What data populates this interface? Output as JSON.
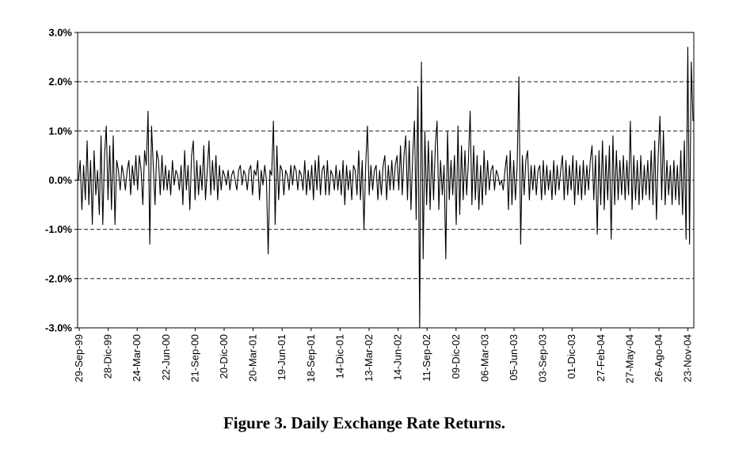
{
  "caption": "Figure 3. Daily Exchange Rate Returns.",
  "chart_data": {
    "type": "line",
    "title": "",
    "xlabel": "",
    "ylabel": "",
    "ylim": [
      -0.03,
      0.03
    ],
    "y_tick_values": [
      0.03,
      0.02,
      0.01,
      0.0,
      -0.01,
      -0.02,
      -0.03
    ],
    "y_tick_labels": [
      "3.0%",
      "2.0%",
      "1.0%",
      "0.0%",
      "-1.0%",
      "-2.0%",
      "-3.0%"
    ],
    "x_tick_labels": [
      "29-Sep-99",
      "28-Dic-99",
      "24-Mar-00",
      "22-Jun-00",
      "21-Sep-00",
      "20-Dic-00",
      "20-Mar-01",
      "19-Jun-01",
      "18-Sep-01",
      "14-Dic-01",
      "13-Mar-02",
      "14-Jun-02",
      "11-Sep-02",
      "09-Dic-02",
      "06-Mar-03",
      "05-Jun-03",
      "03-Sep-03",
      "01-Dic-03",
      "27-Feb-04",
      "27-May-04",
      "26-Ago-04",
      "23-Nov-04"
    ],
    "grid": {
      "horizontal": true,
      "style": "dashed"
    },
    "legend": "none",
    "series_color": "#000000",
    "series": [
      {
        "values": [
          0.0,
          0.004,
          -0.006,
          0.003,
          -0.004,
          0.008,
          -0.005,
          0.004,
          -0.009,
          0.006,
          -0.003,
          0.002,
          -0.007,
          0.009,
          -0.009,
          0.005,
          0.011,
          -0.004,
          0.007,
          -0.006,
          0.009,
          -0.009,
          0.004,
          0.002,
          -0.002,
          0.003,
          0.001,
          -0.002,
          0.002,
          0.004,
          -0.003,
          0.003,
          -0.001,
          0.005,
          -0.002,
          0.005,
          0.002,
          -0.005,
          0.006,
          0.003,
          0.014,
          -0.013,
          0.011,
          0.003,
          -0.005,
          0.006,
          0.004,
          -0.003,
          0.005,
          -0.002,
          0.003,
          -0.002,
          0.002,
          -0.003,
          0.004,
          -0.001,
          0.002,
          0.001,
          -0.002,
          0.003,
          -0.005,
          0.006,
          -0.002,
          0.003,
          -0.006,
          0.005,
          0.008,
          -0.004,
          0.004,
          -0.003,
          0.003,
          -0.002,
          0.007,
          -0.004,
          0.002,
          0.008,
          -0.003,
          0.004,
          -0.002,
          0.005,
          -0.004,
          0.003,
          -0.002,
          0.002,
          0.001,
          -0.001,
          0.002,
          -0.002,
          0.001,
          0.002,
          0.0,
          -0.002,
          0.002,
          0.003,
          -0.001,
          0.002,
          0.001,
          -0.002,
          0.002,
          0.003,
          -0.003,
          0.002,
          0.001,
          0.004,
          -0.004,
          0.002,
          -0.001,
          0.003,
          0.0,
          -0.015,
          0.002,
          0.001,
          0.012,
          -0.009,
          0.007,
          -0.004,
          0.003,
          0.002,
          -0.003,
          0.002,
          0.001,
          -0.002,
          0.003,
          -0.001,
          0.003,
          0.002,
          -0.002,
          0.002,
          0.001,
          -0.002,
          0.004,
          -0.003,
          0.002,
          -0.002,
          0.003,
          -0.004,
          0.004,
          -0.002,
          0.005,
          -0.003,
          0.002,
          0.003,
          -0.003,
          0.004,
          -0.003,
          0.002,
          0.001,
          -0.002,
          0.003,
          -0.002,
          0.002,
          -0.003,
          0.004,
          -0.005,
          0.003,
          -0.002,
          0.002,
          -0.004,
          0.003,
          0.002,
          -0.003,
          0.006,
          -0.004,
          0.004,
          -0.01,
          0.003,
          0.011,
          -0.003,
          0.003,
          -0.002,
          0.002,
          0.003,
          -0.004,
          0.002,
          -0.003,
          0.003,
          0.005,
          -0.004,
          0.003,
          -0.002,
          0.004,
          -0.002,
          0.003,
          0.005,
          -0.002,
          0.007,
          -0.003,
          0.005,
          0.009,
          -0.004,
          0.008,
          -0.006,
          0.005,
          0.012,
          -0.008,
          0.019,
          -0.03,
          0.024,
          -0.016,
          0.01,
          -0.005,
          0.008,
          -0.006,
          0.006,
          -0.004,
          0.007,
          0.012,
          -0.006,
          0.004,
          -0.003,
          0.003,
          -0.016,
          0.01,
          -0.004,
          0.004,
          -0.003,
          0.005,
          -0.009,
          0.011,
          -0.007,
          0.007,
          -0.004,
          0.006,
          -0.003,
          0.004,
          0.014,
          -0.005,
          0.007,
          -0.004,
          0.005,
          -0.006,
          0.003,
          -0.005,
          0.006,
          -0.003,
          0.004,
          -0.002,
          0.002,
          0.003,
          -0.002,
          0.002,
          0.001,
          -0.001,
          0.0,
          -0.002,
          0.002,
          0.005,
          -0.006,
          0.006,
          -0.005,
          0.004,
          -0.004,
          0.003,
          0.021,
          -0.013,
          0.005,
          -0.003,
          0.004,
          0.006,
          -0.004,
          0.003,
          -0.002,
          0.003,
          -0.003,
          0.002,
          0.003,
          -0.004,
          0.004,
          -0.003,
          0.003,
          -0.002,
          0.002,
          -0.004,
          0.004,
          -0.003,
          0.003,
          -0.002,
          0.002,
          0.005,
          -0.004,
          0.004,
          -0.003,
          0.003,
          -0.002,
          0.005,
          -0.005,
          0.004,
          -0.003,
          0.003,
          -0.004,
          0.004,
          -0.003,
          0.003,
          -0.002,
          0.004,
          0.007,
          -0.004,
          0.005,
          -0.011,
          0.006,
          -0.005,
          0.008,
          -0.006,
          0.005,
          -0.004,
          0.007,
          -0.012,
          0.009,
          -0.005,
          0.006,
          -0.004,
          0.004,
          -0.003,
          0.005,
          -0.004,
          0.004,
          -0.003,
          0.012,
          -0.006,
          0.005,
          -0.004,
          0.004,
          -0.005,
          0.005,
          -0.004,
          0.003,
          -0.003,
          0.004,
          -0.004,
          0.006,
          -0.005,
          0.008,
          -0.008,
          0.005,
          0.013,
          -0.004,
          0.01,
          -0.005,
          0.004,
          -0.003,
          0.003,
          -0.005,
          0.004,
          -0.004,
          0.003,
          -0.005,
          0.006,
          -0.007,
          0.008,
          -0.012,
          0.027,
          -0.013,
          0.024,
          0.012
        ]
      }
    ]
  }
}
